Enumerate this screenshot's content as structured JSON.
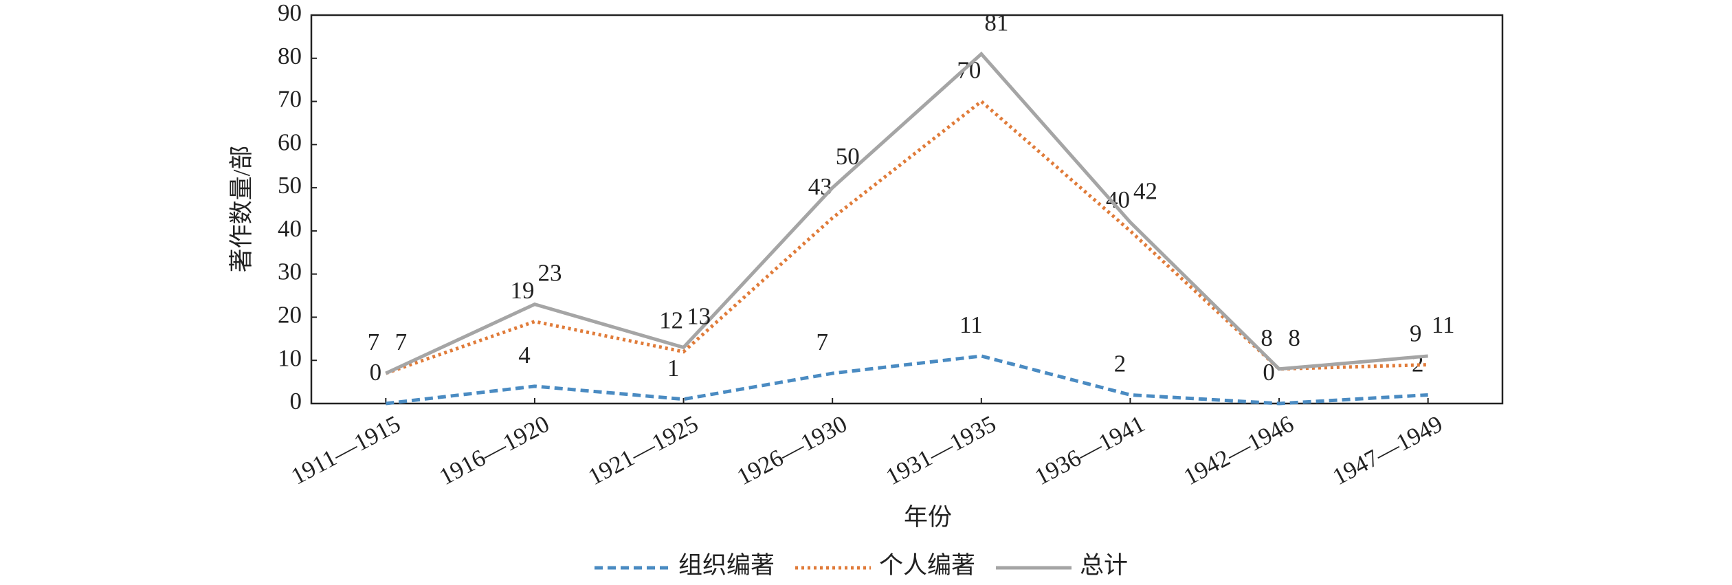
{
  "chart_data": {
    "type": "line",
    "x_label": "年份",
    "y_label": "著作数量/部",
    "categories": [
      "1911—1915",
      "1916—1920",
      "1921—1925",
      "1926—1930",
      "1931—1935",
      "1936—1941",
      "1942—1946",
      "1947—1949"
    ],
    "series": [
      {
        "name": "组织编著",
        "color": "#4a8bc2",
        "dash": "dashed",
        "values": [
          0,
          4,
          1,
          7,
          11,
          2,
          0,
          2
        ]
      },
      {
        "name": "个人编著",
        "color": "#e07b39",
        "dash": "dotted",
        "values": [
          7,
          19,
          12,
          43,
          70,
          40,
          8,
          9
        ]
      },
      {
        "name": "总计",
        "color": "#a5a5a5",
        "dash": "solid",
        "values": [
          7,
          23,
          13,
          50,
          81,
          42,
          8,
          11
        ]
      }
    ],
    "ylim": [
      0,
      90
    ],
    "yticks": [
      0,
      10,
      20,
      30,
      40,
      50,
      60,
      70,
      80,
      90
    ],
    "grid": false,
    "legend": "bottom"
  }
}
